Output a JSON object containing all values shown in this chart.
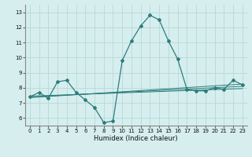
{
  "xlabel": "Humidex (Indice chaleur)",
  "background_color": "#d6eeee",
  "grid_color": "#b8d8d8",
  "line_color": "#2e7d7d",
  "xlim": [
    -0.5,
    23.5
  ],
  "ylim": [
    5.5,
    13.5
  ],
  "xticks": [
    0,
    1,
    2,
    3,
    4,
    5,
    6,
    7,
    8,
    9,
    10,
    11,
    12,
    13,
    14,
    15,
    16,
    17,
    18,
    19,
    20,
    21,
    22,
    23
  ],
  "yticks": [
    6,
    7,
    8,
    9,
    10,
    11,
    12,
    13
  ],
  "main_line_x": [
    0,
    1,
    2,
    3,
    4,
    5,
    6,
    7,
    8,
    9,
    10,
    11,
    12,
    13,
    14,
    15,
    16,
    17,
    18,
    19,
    20,
    21,
    22,
    23
  ],
  "main_line_y": [
    7.4,
    7.7,
    7.3,
    8.4,
    8.5,
    7.7,
    7.2,
    6.7,
    5.7,
    5.8,
    9.8,
    11.1,
    12.1,
    12.8,
    12.5,
    11.1,
    9.9,
    7.9,
    7.8,
    7.8,
    8.0,
    7.9,
    8.5,
    8.2
  ],
  "reg_lines": [
    {
      "x": [
        0,
        23
      ],
      "y": [
        7.35,
        8.25
      ]
    },
    {
      "x": [
        0,
        23
      ],
      "y": [
        7.4,
        8.1
      ]
    },
    {
      "x": [
        0,
        23
      ],
      "y": [
        7.45,
        7.95
      ]
    }
  ],
  "xlabel_fontsize": 6,
  "tick_fontsize": 5,
  "marker_size": 2.0,
  "line_width": 0.9
}
